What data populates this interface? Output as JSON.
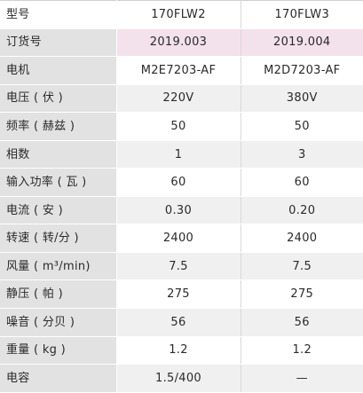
{
  "table": {
    "rows": [
      {
        "label": "型号",
        "a": "170FLW2",
        "b": "170FLW3",
        "style": "header"
      },
      {
        "label": "订货号",
        "a": "2019.003",
        "b": "2019.004",
        "style": "highlight"
      },
      {
        "label": "电机",
        "a": "M2E7203-AF",
        "b": "M2D7203-AF",
        "style": "even"
      },
      {
        "label": "电压 ( 伏 )",
        "a": "220V",
        "b": "380V",
        "style": "odd"
      },
      {
        "label": "频率 ( 赫兹 )",
        "a": "50",
        "b": "50",
        "style": "even"
      },
      {
        "label": "相数",
        "a": "1",
        "b": "3",
        "style": "odd"
      },
      {
        "label": "输入功率 ( 瓦 )",
        "a": "60",
        "b": "60",
        "style": "even"
      },
      {
        "label": "电流 ( 安 )",
        "a": "0.30",
        "b": "0.20",
        "style": "odd"
      },
      {
        "label": "转速 ( 转/分 )",
        "a": "2400",
        "b": "2400",
        "style": "even"
      },
      {
        "label": "风量 ( m³/min)",
        "a": "7.5",
        "b": "7.5",
        "style": "odd"
      },
      {
        "label": "静压 ( 帕 )",
        "a": "275",
        "b": "275",
        "style": "even"
      },
      {
        "label": "噪音 ( 分贝 )",
        "a": "56",
        "b": "56",
        "style": "odd"
      },
      {
        "label": "重量 ( kg )",
        "a": "1.2",
        "b": "1.2",
        "style": "even"
      },
      {
        "label": "电容",
        "a": "1.5/400",
        "b": "—",
        "style": "odd"
      }
    ]
  },
  "colors": {
    "label_bg": "#e2e2e2",
    "highlight_bg": "#f3e1ec",
    "alt_row_bg": "#f0f0f0"
  }
}
